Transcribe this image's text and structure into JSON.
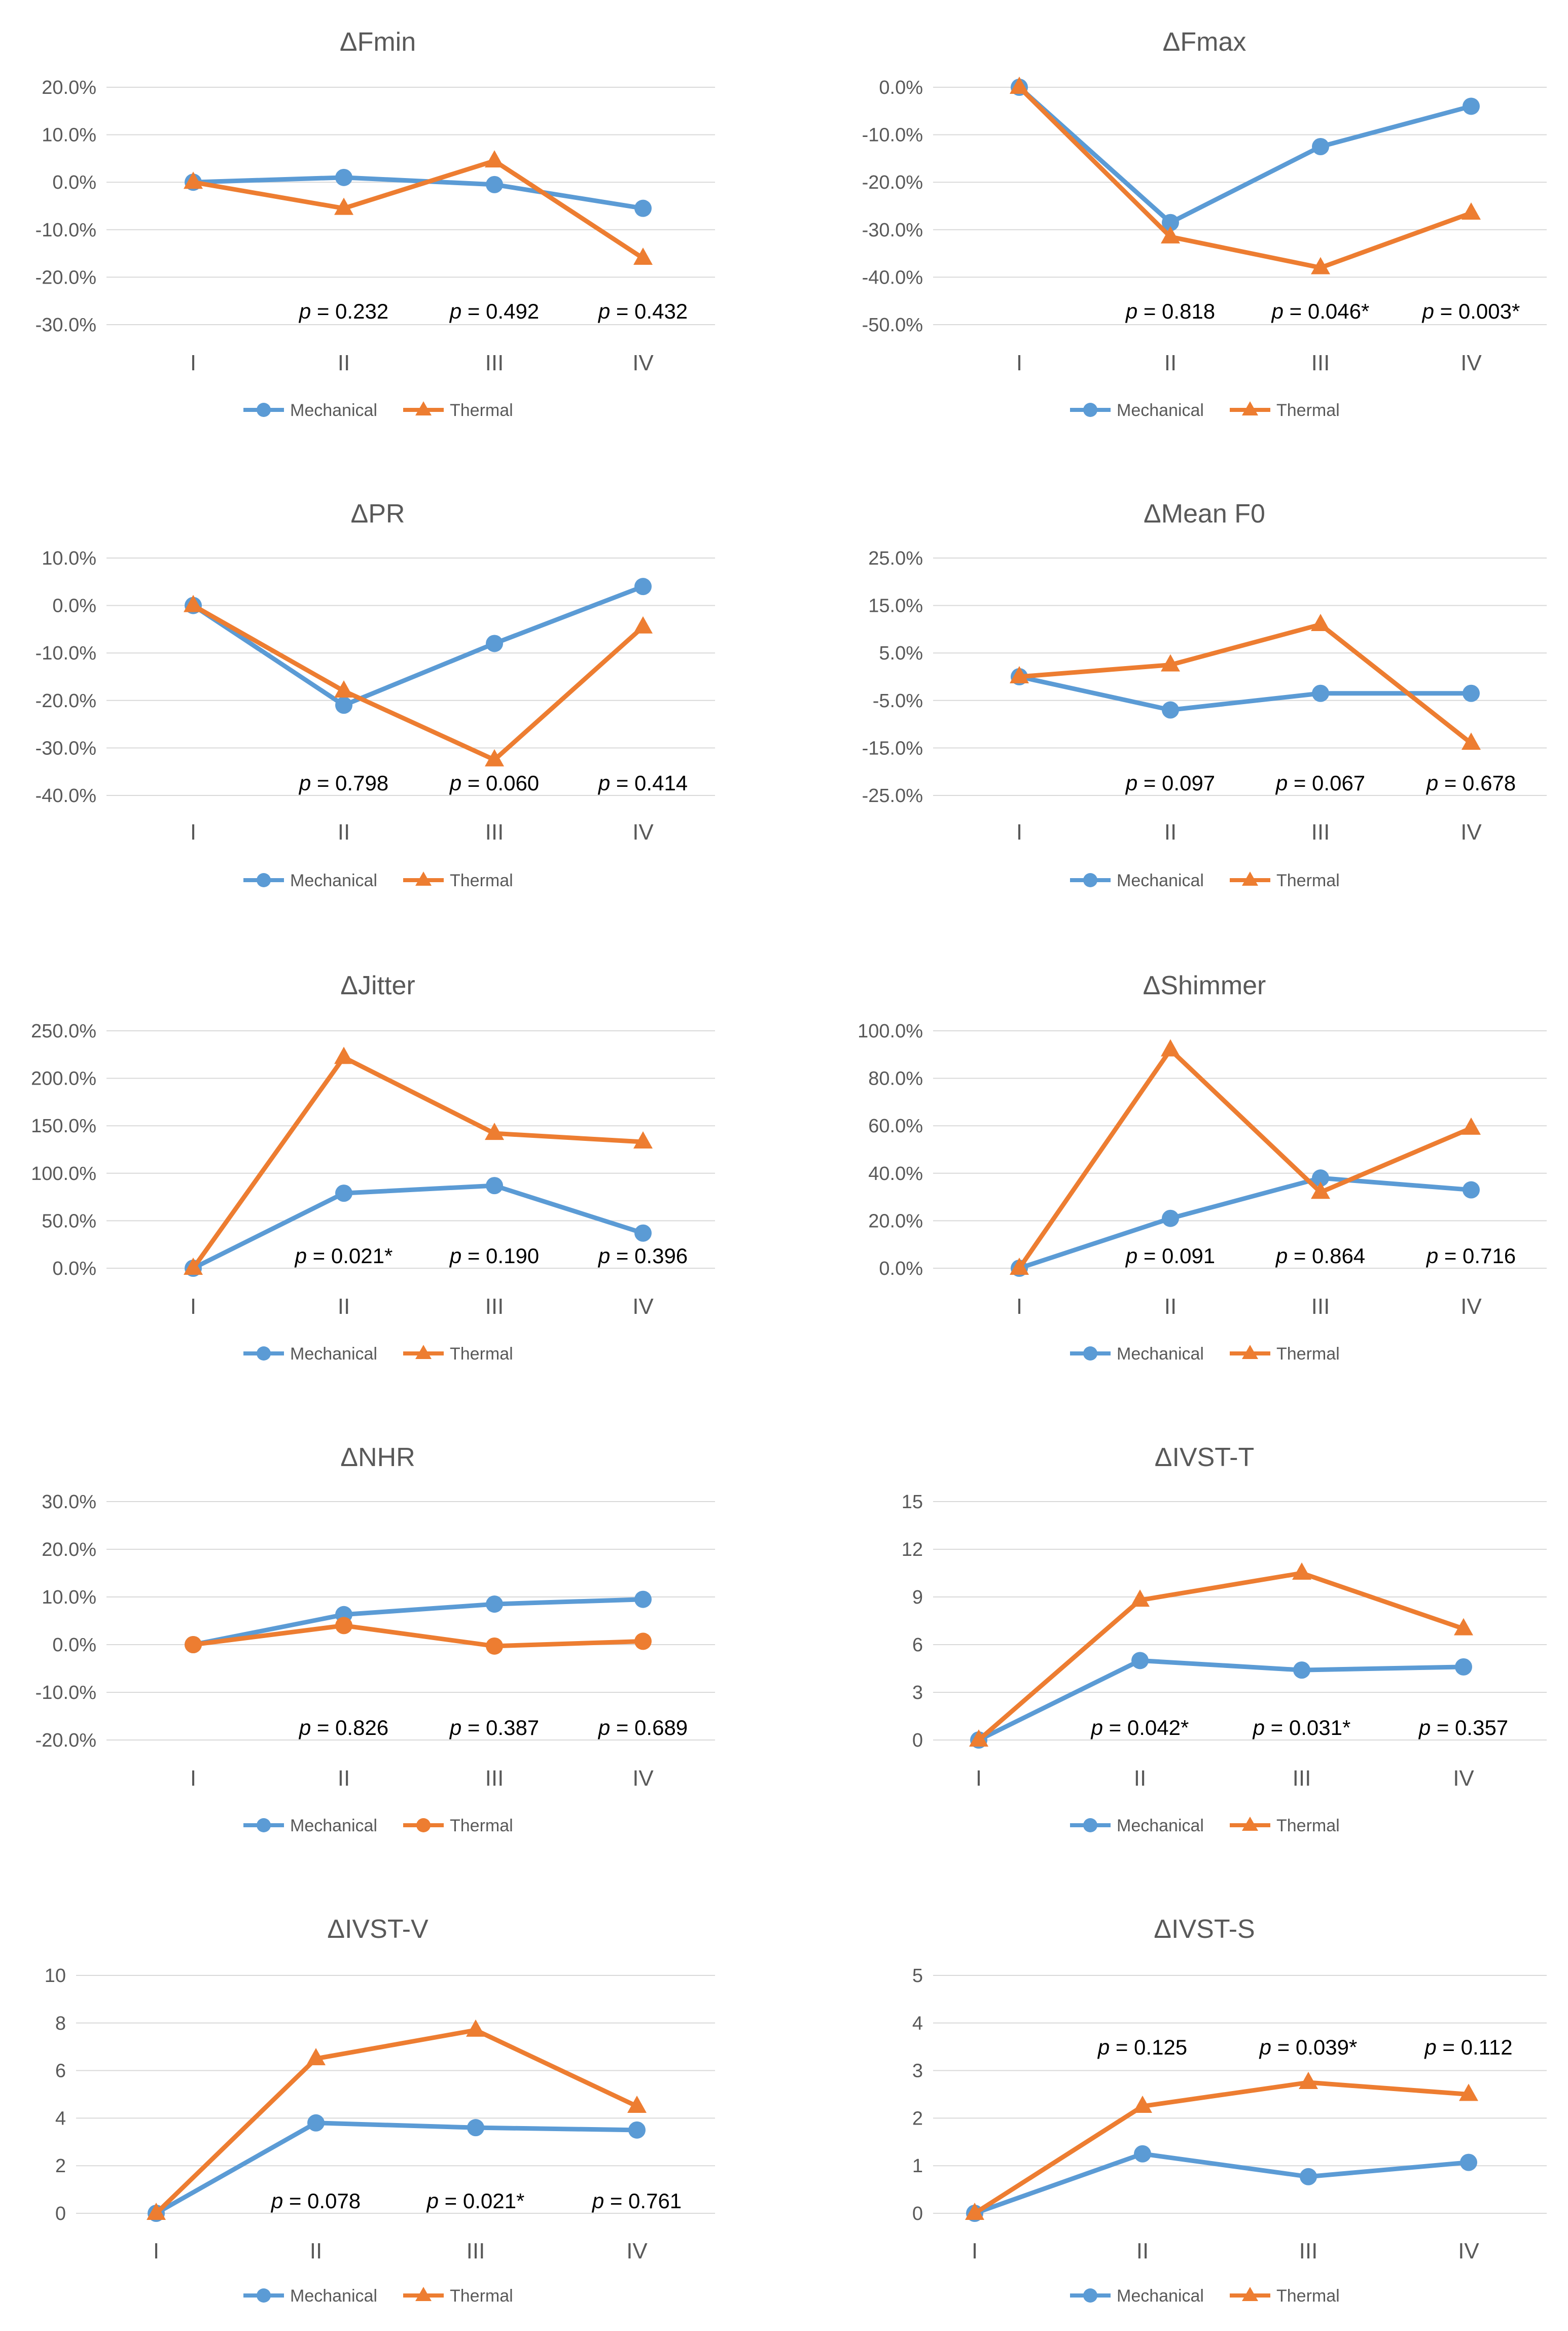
{
  "colors": {
    "mechanical": "#5b9bd5",
    "thermal": "#ed7d31"
  },
  "chart_data": [
    {
      "type": "line",
      "title": "ΔFmin",
      "categories": [
        "I",
        "II",
        "III",
        "IV"
      ],
      "ylim": [
        -30,
        20
      ],
      "yticks": [
        20,
        10,
        0,
        -10,
        -20,
        -30
      ],
      "tick_labels": [
        "20.0%",
        "10.0%",
        "0.0%",
        "-10.0%",
        "-20.0%",
        "-30.0%"
      ],
      "series": [
        {
          "name": "Mechanical",
          "marker": "circle",
          "values": [
            0,
            1,
            -0.5,
            -5.5
          ]
        },
        {
          "name": "Thermal",
          "marker": "triangle",
          "values": [
            0,
            -5.5,
            4.5,
            -16
          ]
        }
      ],
      "p_values": [
        {
          "label": "p",
          "value": " = 0.232"
        },
        {
          "label": "p",
          "value": " = 0.492"
        },
        {
          "label": "p",
          "value": " = 0.432"
        }
      ],
      "p_position": "bottom",
      "legend": "bottom"
    },
    {
      "type": "line",
      "title": "ΔFmax",
      "categories": [
        "I",
        "II",
        "III",
        "IV"
      ],
      "ylim": [
        -50,
        0
      ],
      "yticks": [
        0,
        -10,
        -20,
        -30,
        -40,
        -50
      ],
      "tick_labels": [
        "0.0%",
        "-10.0%",
        "-20.0%",
        "-30.0%",
        "-40.0%",
        "-50.0%"
      ],
      "series": [
        {
          "name": "Mechanical",
          "marker": "circle",
          "values": [
            0,
            -28.5,
            -12.5,
            -4
          ]
        },
        {
          "name": "Thermal",
          "marker": "triangle",
          "values": [
            0,
            -31.5,
            -38,
            -26.5
          ]
        }
      ],
      "p_values": [
        {
          "label": "p",
          "value": " = 0.818"
        },
        {
          "label": "p",
          "value": " = 0.046*"
        },
        {
          "label": "p",
          "value": " = 0.003*"
        }
      ],
      "p_position": "bottom",
      "legend": "bottom"
    },
    {
      "type": "line",
      "title": "ΔPR",
      "categories": [
        "I",
        "II",
        "III",
        "IV"
      ],
      "ylim": [
        -40,
        10
      ],
      "yticks": [
        10,
        0,
        -10,
        -20,
        -30,
        -40
      ],
      "tick_labels": [
        "10.0%",
        "0.0%",
        "-10.0%",
        "-20.0%",
        "-30.0%",
        "-40.0%"
      ],
      "series": [
        {
          "name": "Mechanical",
          "marker": "circle",
          "values": [
            0,
            -21,
            -8,
            4
          ]
        },
        {
          "name": "Thermal",
          "marker": "triangle",
          "values": [
            0,
            -18,
            -32.5,
            -4.5
          ]
        }
      ],
      "p_values": [
        {
          "label": "p",
          "value": " = 0.798"
        },
        {
          "label": "p",
          "value": " = 0.060"
        },
        {
          "label": "p",
          "value": " = 0.414"
        }
      ],
      "p_position": "bottom",
      "legend": "bottom"
    },
    {
      "type": "line",
      "title": "ΔMean F0",
      "categories": [
        "I",
        "II",
        "III",
        "IV"
      ],
      "ylim": [
        -25,
        25
      ],
      "yticks": [
        25,
        15,
        5,
        -5,
        -15,
        -25
      ],
      "tick_labels": [
        "25.0%",
        "15.0%",
        "5.0%",
        "-5.0%",
        "-15.0%",
        "-25.0%"
      ],
      "series": [
        {
          "name": "Mechanical",
          "marker": "circle",
          "values": [
            0,
            -7,
            -3.5,
            -3.5
          ]
        },
        {
          "name": "Thermal",
          "marker": "triangle",
          "values": [
            0,
            2.5,
            11,
            -14
          ]
        }
      ],
      "p_values": [
        {
          "label": "p",
          "value": " = 0.097"
        },
        {
          "label": "p",
          "value": " = 0.067"
        },
        {
          "label": "p",
          "value": " = 0.678"
        }
      ],
      "p_position": "bottom",
      "legend": "bottom"
    },
    {
      "type": "line",
      "title": "ΔJitter",
      "categories": [
        "I",
        "II",
        "III",
        "IV"
      ],
      "ylim": [
        0,
        250
      ],
      "yticks": [
        250,
        200,
        150,
        100,
        50,
        0
      ],
      "tick_labels": [
        "250.0%",
        "200.0%",
        "150.0%",
        "100.0%",
        "50.0%",
        "0.0%"
      ],
      "series": [
        {
          "name": "Mechanical",
          "marker": "circle",
          "values": [
            0,
            79,
            87,
            37
          ]
        },
        {
          "name": "Thermal",
          "marker": "triangle",
          "values": [
            0,
            222,
            142,
            133
          ]
        }
      ],
      "p_values": [
        {
          "label": "p",
          "value": " = 0.021*"
        },
        {
          "label": "p",
          "value": " = 0.190"
        },
        {
          "label": "p",
          "value": " = 0.396"
        }
      ],
      "p_position": "bottom",
      "legend": "bottom"
    },
    {
      "type": "line",
      "title": "ΔShimmer",
      "categories": [
        "I",
        "II",
        "III",
        "IV"
      ],
      "ylim": [
        0,
        100
      ],
      "yticks": [
        100,
        80,
        60,
        40,
        20,
        0
      ],
      "tick_labels": [
        "100.0%",
        "80.0%",
        "60.0%",
        "40.0%",
        "20.0%",
        "0.0%"
      ],
      "series": [
        {
          "name": "Mechanical",
          "marker": "circle",
          "values": [
            0,
            21,
            38,
            33
          ]
        },
        {
          "name": "Thermal",
          "marker": "triangle",
          "values": [
            0,
            92,
            32,
            59
          ]
        }
      ],
      "p_values": [
        {
          "label": "p",
          "value": " = 0.091"
        },
        {
          "label": "p",
          "value": " = 0.864"
        },
        {
          "label": "p",
          "value": " = 0.716"
        }
      ],
      "p_position": "bottom",
      "legend": "bottom"
    },
    {
      "type": "line",
      "title": "ΔNHR",
      "categories": [
        "I",
        "II",
        "III",
        "IV"
      ],
      "ylim": [
        -20,
        30
      ],
      "yticks": [
        30,
        20,
        10,
        0,
        -10,
        -20
      ],
      "tick_labels": [
        "30.0%",
        "20.0%",
        "10.0%",
        "0.0%",
        "-10.0%",
        "-20.0%"
      ],
      "series": [
        {
          "name": "Mechanical",
          "marker": "circle",
          "values": [
            0,
            6.3,
            8.5,
            9.5
          ]
        },
        {
          "name": "Thermal",
          "marker": "circle",
          "values": [
            0,
            4,
            -0.3,
            0.7
          ]
        }
      ],
      "p_values": [
        {
          "label": "p",
          "value": " = 0.826"
        },
        {
          "label": "p",
          "value": " = 0.387"
        },
        {
          "label": "p",
          "value": " = 0.689"
        }
      ],
      "p_position": "bottom",
      "legend": "bottom"
    },
    {
      "type": "line",
      "title": "ΔIVST-T",
      "categories": [
        "I",
        "II",
        "III",
        "IV"
      ],
      "ylim": [
        0,
        15
      ],
      "yticks": [
        15,
        12,
        9,
        6,
        3,
        0
      ],
      "tick_labels": [
        "15",
        "12",
        "9",
        "6",
        "3",
        "0"
      ],
      "series": [
        {
          "name": "Mechanical",
          "marker": "circle",
          "values": [
            0,
            5,
            4.4,
            4.6
          ]
        },
        {
          "name": "Thermal",
          "marker": "triangle",
          "values": [
            0,
            8.8,
            10.5,
            7
          ]
        }
      ],
      "p_values": [
        {
          "label": "p",
          "value": " = 0.042*"
        },
        {
          "label": "p",
          "value": " = 0.031*"
        },
        {
          "label": "p",
          "value": " = 0.357"
        }
      ],
      "p_position": "bottom",
      "legend": "bottom"
    },
    {
      "type": "line",
      "title": "ΔIVST-V",
      "categories": [
        "I",
        "II",
        "III",
        "IV"
      ],
      "ylim": [
        0,
        10
      ],
      "yticks": [
        10,
        8,
        6,
        4,
        2,
        0
      ],
      "tick_labels": [
        "10",
        "8",
        "6",
        "4",
        "2",
        "0"
      ],
      "series": [
        {
          "name": "Mechanical",
          "marker": "circle",
          "values": [
            0,
            3.8,
            3.6,
            3.5
          ]
        },
        {
          "name": "Thermal",
          "marker": "triangle",
          "values": [
            0,
            6.5,
            7.7,
            4.5
          ]
        }
      ],
      "p_values": [
        {
          "label": "p",
          "value": " = 0.078"
        },
        {
          "label": "p",
          "value": " = 0.021*"
        },
        {
          "label": "p",
          "value": " = 0.761"
        }
      ],
      "p_position": "bottom",
      "legend": "bottom"
    },
    {
      "type": "line",
      "title": "ΔIVST-S",
      "categories": [
        "I",
        "II",
        "III",
        "IV"
      ],
      "ylim": [
        0,
        5
      ],
      "yticks": [
        5,
        4,
        3,
        2,
        1,
        0
      ],
      "tick_labels": [
        "5",
        "4",
        "3",
        "2",
        "1",
        "0"
      ],
      "series": [
        {
          "name": "Mechanical",
          "marker": "circle",
          "values": [
            0,
            1.25,
            0.77,
            1.07
          ]
        },
        {
          "name": "Thermal",
          "marker": "triangle",
          "values": [
            0,
            2.25,
            2.75,
            2.5
          ]
        }
      ],
      "p_values": [
        {
          "label": "p",
          "value": " = 0.125"
        },
        {
          "label": "p",
          "value": " = 0.039*"
        },
        {
          "label": "p",
          "value": " = 0.112"
        }
      ],
      "p_position": "top",
      "legend": "bottom"
    }
  ]
}
